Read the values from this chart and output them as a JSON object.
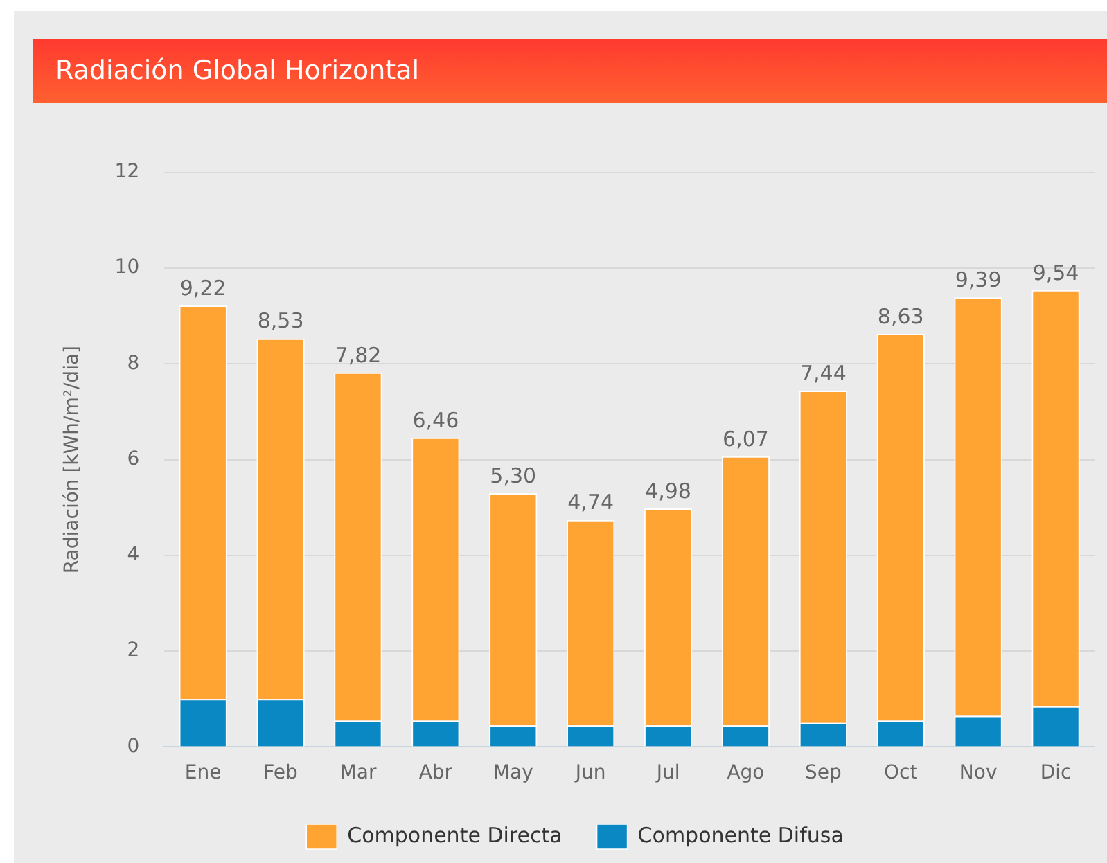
{
  "chart_data": {
    "type": "bar",
    "title": "Radiación Global Horizontal",
    "ylabel": "Radiación [kWh/m²/dia]",
    "categories": [
      "Ene",
      "Feb",
      "Mar",
      "Abr",
      "May",
      "Jun",
      "Jul",
      "Ago",
      "Sep",
      "Oct",
      "Nov",
      "Dic"
    ],
    "stacked": true,
    "series": [
      {
        "name": "Componente Difusa",
        "color": "#0a88c4",
        "values": [
          1.0,
          1.0,
          0.55,
          0.55,
          0.45,
          0.45,
          0.45,
          0.45,
          0.5,
          0.55,
          0.65,
          0.85
        ]
      },
      {
        "name": "Componente Directa",
        "color": "#ffa333",
        "values": [
          8.22,
          7.53,
          7.27,
          5.91,
          4.85,
          4.29,
          4.53,
          5.62,
          6.94,
          8.08,
          8.74,
          8.69
        ]
      }
    ],
    "totals": [
      "9,22",
      "8,53",
      "7,82",
      "6,46",
      "5,30",
      "4,74",
      "4,98",
      "6,07",
      "7,44",
      "8,63",
      "9,39",
      "9,54"
    ],
    "ylim": [
      0,
      12
    ],
    "yticks": [
      0,
      2,
      4,
      6,
      8,
      10,
      12
    ],
    "grid": "y",
    "legend": "bottom"
  }
}
